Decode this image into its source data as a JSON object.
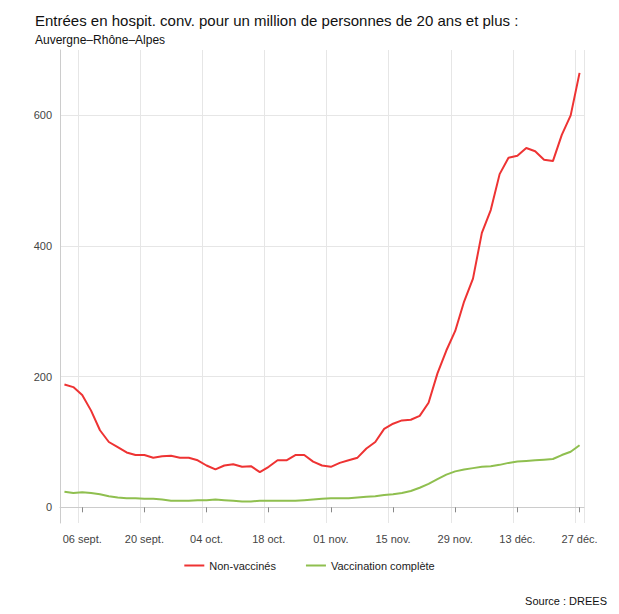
{
  "chart_data": {
    "type": "line",
    "title": "Entrées en hospit. conv. pour un million de personnes de 20 ans et plus :",
    "subtitle": "Auvergne–Rhône–Alpes",
    "source": "Source : DREES",
    "categories": [
      null,
      null,
      "06 sept.",
      null,
      null,
      null,
      null,
      null,
      null,
      "20 sept.",
      null,
      null,
      null,
      null,
      null,
      null,
      "04 oct.",
      null,
      null,
      null,
      null,
      null,
      null,
      "18 oct.",
      null,
      null,
      null,
      null,
      null,
      null,
      "01 nov.",
      null,
      null,
      null,
      null,
      null,
      null,
      "15 nov.",
      null,
      null,
      null,
      null,
      null,
      null,
      "29 nov.",
      null,
      null,
      null,
      null,
      null,
      null,
      "13 déc.",
      null,
      null,
      null,
      null,
      null,
      null,
      "27 déc."
    ],
    "series": [
      {
        "name": "Non-vaccinés",
        "color": "#ee3333",
        "values": [
          188,
          184,
          172,
          148,
          118,
          100,
          92,
          84,
          80,
          80,
          76,
          78,
          79,
          76,
          76,
          72,
          64,
          58,
          64,
          66,
          62,
          63,
          54,
          62,
          72,
          72,
          80,
          80,
          70,
          64,
          62,
          68,
          72,
          76,
          90,
          100,
          120,
          128,
          133,
          134,
          140,
          160,
          205,
          240,
          270,
          315,
          350,
          420,
          455,
          510,
          535,
          538,
          550,
          545,
          532,
          530,
          570,
          600,
          665
        ]
      },
      {
        "name": "Vaccination complète",
        "color": "#8fbf4f",
        "values": [
          24,
          22,
          23,
          22,
          20,
          17,
          15,
          14,
          14,
          13,
          13,
          12,
          10,
          10,
          10,
          11,
          11,
          12,
          11,
          10,
          9,
          9,
          10,
          10,
          10,
          10,
          10,
          11,
          12,
          13,
          14,
          14,
          14,
          15,
          16,
          17,
          19,
          20,
          22,
          25,
          30,
          36,
          43,
          50,
          55,
          58,
          60,
          62,
          63,
          65,
          68,
          70,
          71,
          72,
          73,
          74,
          80,
          85,
          95
        ]
      }
    ],
    "ylim": [
      -24,
      700
    ],
    "yticks": [
      0,
      200,
      400,
      600
    ],
    "grid": true,
    "legend": "bottom"
  }
}
